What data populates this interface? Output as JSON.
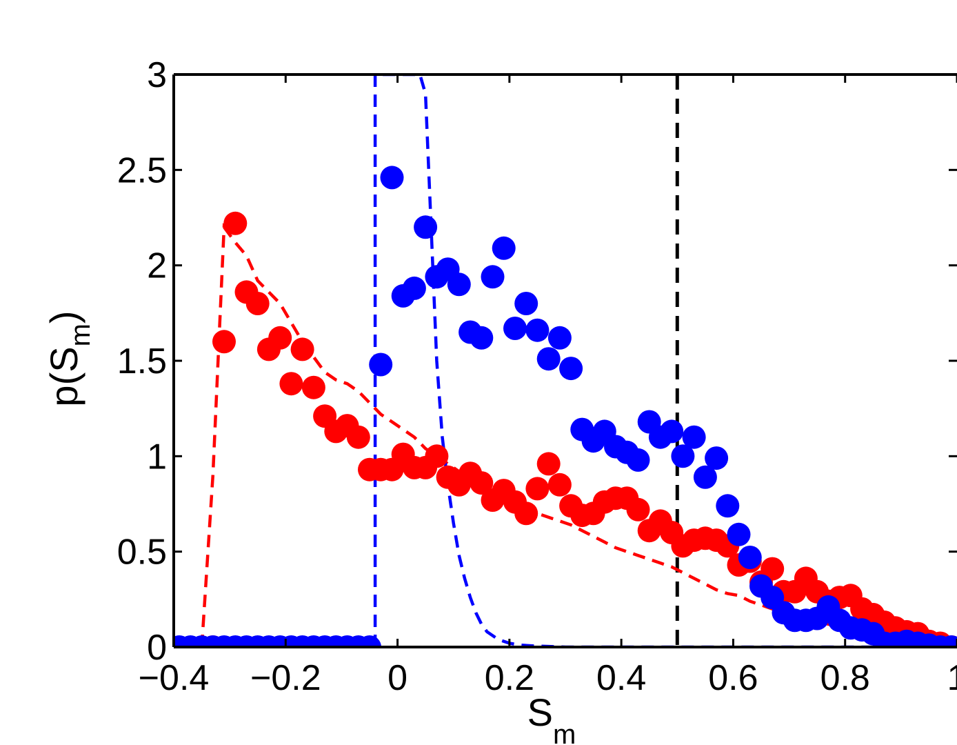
{
  "chart_data": {
    "type": "scatter",
    "title": "",
    "xlabel": "S",
    "xlabel_sub": "m",
    "ylabel": "p(S",
    "ylabel_sub": "m",
    "ylabel_close": ")",
    "xlim": [
      -0.4,
      1.0
    ],
    "ylim": [
      0,
      3
    ],
    "xticks": [
      -0.4,
      -0.2,
      0,
      0.2,
      0.4,
      0.6,
      0.8,
      1.0
    ],
    "xtick_labels": [
      "−0.4",
      "−0.2",
      "0",
      "0.2",
      "0.4",
      "0.6",
      "0.8",
      "1"
    ],
    "yticks": [
      0,
      0.5,
      1,
      1.5,
      2,
      2.5,
      3
    ],
    "ytick_labels": [
      "0",
      "0.5",
      "1",
      "1.5",
      "2",
      "2.5",
      "3"
    ],
    "grid": false,
    "colors": {
      "red": "#ff0000",
      "blue": "#0000ff",
      "black": "#000000"
    },
    "vertical_line": {
      "x": 0.5,
      "color": "#000000",
      "style": "dashed"
    },
    "series": [
      {
        "kind": "points",
        "color": "#ff0000",
        "x": [
          -0.33,
          -0.31,
          -0.29,
          -0.27,
          -0.25,
          -0.23,
          -0.21,
          -0.19,
          -0.17,
          -0.15,
          -0.13,
          -0.11,
          -0.09,
          -0.07,
          -0.05,
          -0.03,
          -0.01,
          0.01,
          0.03,
          0.05,
          0.07,
          0.09,
          0.11,
          0.13,
          0.15,
          0.17,
          0.19,
          0.21,
          0.23,
          0.25,
          0.27,
          0.29,
          0.31,
          0.33,
          0.35,
          0.37,
          0.39,
          0.41,
          0.43,
          0.45,
          0.47,
          0.49,
          0.51,
          0.53,
          0.55,
          0.57,
          0.59,
          0.61,
          0.63,
          0.65,
          0.67,
          0.69,
          0.71,
          0.73,
          0.75,
          0.77,
          0.79,
          0.81,
          0.83,
          0.85,
          0.87,
          0.89,
          0.91,
          0.93,
          0.95,
          0.97,
          0.99
        ],
        "y": [
          0,
          1.6,
          2.22,
          1.86,
          1.8,
          1.56,
          1.62,
          1.38,
          1.56,
          1.36,
          1.21,
          1.13,
          1.16,
          1.1,
          0.93,
          0.93,
          0.93,
          1.01,
          0.94,
          0.94,
          1.0,
          0.89,
          0.85,
          0.91,
          0.86,
          0.77,
          0.82,
          0.76,
          0.7,
          0.83,
          0.96,
          0.85,
          0.74,
          0.69,
          0.7,
          0.76,
          0.78,
          0.78,
          0.72,
          0.61,
          0.66,
          0.6,
          0.53,
          0.56,
          0.57,
          0.56,
          0.53,
          0.43,
          0.45,
          0.34,
          0.41,
          0.29,
          0.29,
          0.36,
          0.29,
          0.24,
          0.26,
          0.27,
          0.2,
          0.17,
          0.13,
          0.1,
          0.08,
          0.07,
          0.03,
          0.02,
          0.0
        ]
      },
      {
        "kind": "points",
        "color": "#0000ff",
        "x": [
          -0.39,
          -0.37,
          -0.35,
          -0.33,
          -0.31,
          -0.29,
          -0.27,
          -0.25,
          -0.23,
          -0.21,
          -0.19,
          -0.17,
          -0.15,
          -0.13,
          -0.11,
          -0.09,
          -0.07,
          -0.05,
          -0.03,
          -0.01,
          0.01,
          0.03,
          0.05,
          0.07,
          0.09,
          0.11,
          0.13,
          0.15,
          0.17,
          0.19,
          0.21,
          0.23,
          0.25,
          0.27,
          0.29,
          0.31,
          0.33,
          0.35,
          0.37,
          0.39,
          0.41,
          0.43,
          0.45,
          0.47,
          0.49,
          0.51,
          0.53,
          0.55,
          0.57,
          0.59,
          0.61,
          0.63,
          0.65,
          0.67,
          0.69,
          0.71,
          0.73,
          0.75,
          0.77,
          0.79,
          0.81,
          0.83,
          0.85,
          0.87,
          0.89,
          0.91,
          0.93,
          0.95,
          0.97,
          0.99
        ],
        "y": [
          0,
          0,
          0,
          0,
          0,
          0,
          0,
          0,
          0,
          0,
          0,
          0,
          0,
          0,
          0,
          0,
          0,
          0,
          1.48,
          2.46,
          1.84,
          1.88,
          2.2,
          1.94,
          1.98,
          1.9,
          1.65,
          1.62,
          1.94,
          2.09,
          1.67,
          1.8,
          1.66,
          1.51,
          1.62,
          1.46,
          1.14,
          1.08,
          1.13,
          1.05,
          1.02,
          0.98,
          1.18,
          1.1,
          1.13,
          1.0,
          1.1,
          0.89,
          0.99,
          0.74,
          0.59,
          0.47,
          0.32,
          0.26,
          0.18,
          0.14,
          0.14,
          0.15,
          0.21,
          0.14,
          0.1,
          0.09,
          0.07,
          0.02,
          0.02,
          0.03,
          0.02,
          0.01,
          0.0,
          0.0
        ]
      },
      {
        "kind": "dashed-line",
        "color": "#ff0000",
        "x": [
          -0.35,
          -0.33,
          -0.31,
          -0.29,
          -0.27,
          -0.25,
          -0.23,
          -0.21,
          -0.19,
          -0.17,
          -0.15,
          -0.13,
          -0.11,
          -0.09,
          -0.07,
          -0.05,
          -0.03,
          -0.01,
          0.01,
          0.03,
          0.05,
          0.07,
          0.09,
          0.11,
          0.13,
          0.15,
          0.17,
          0.19,
          0.21,
          0.23,
          0.25,
          0.27,
          0.29,
          0.31,
          0.33,
          0.35,
          0.37,
          0.39,
          0.41,
          0.43,
          0.45,
          0.47,
          0.49,
          0.51,
          0.53,
          0.55,
          0.57,
          0.59,
          0.61,
          0.63,
          0.65,
          0.67,
          0.69,
          0.71,
          0.73,
          0.75,
          0.77,
          0.79,
          0.81,
          0.83,
          0.85,
          0.87,
          0.89,
          0.91,
          0.93,
          0.95,
          0.97,
          0.99
        ],
        "y": [
          0,
          0.9,
          2.2,
          2.12,
          2.05,
          1.92,
          1.86,
          1.8,
          1.7,
          1.6,
          1.52,
          1.44,
          1.4,
          1.38,
          1.34,
          1.28,
          1.22,
          1.18,
          1.14,
          1.1,
          1.04,
          1.0,
          0.96,
          0.92,
          0.88,
          0.85,
          0.82,
          0.8,
          0.76,
          0.72,
          0.7,
          0.68,
          0.66,
          0.64,
          0.61,
          0.58,
          0.55,
          0.52,
          0.5,
          0.48,
          0.46,
          0.44,
          0.42,
          0.39,
          0.36,
          0.33,
          0.3,
          0.28,
          0.27,
          0.24,
          0.22,
          0.2,
          0.18,
          0.16,
          0.14,
          0.13,
          0.12,
          0.1,
          0.09,
          0.08,
          0.06,
          0.05,
          0.04,
          0.03,
          0.02,
          0.01,
          0.005,
          0.0
        ]
      },
      {
        "kind": "dashed-line",
        "color": "#0000ff",
        "x": [
          -0.04,
          -0.04,
          -0.03,
          -0.02,
          0.0,
          0.02,
          0.04,
          0.05,
          0.06,
          0.07,
          0.08,
          0.09,
          0.1,
          0.11,
          0.12,
          0.13,
          0.14,
          0.15,
          0.16,
          0.18,
          0.2,
          0.22,
          0.25,
          0.3,
          0.4,
          0.6,
          0.8,
          1.0
        ],
        "y": [
          0,
          3.0,
          3.0,
          3.0,
          3.0,
          3.0,
          3.0,
          2.9,
          2.2,
          1.5,
          1.1,
          0.85,
          0.65,
          0.48,
          0.36,
          0.26,
          0.18,
          0.12,
          0.08,
          0.04,
          0.02,
          0.01,
          0.005,
          0.0,
          0.0,
          0.0,
          0.0,
          0.0
        ]
      }
    ]
  }
}
